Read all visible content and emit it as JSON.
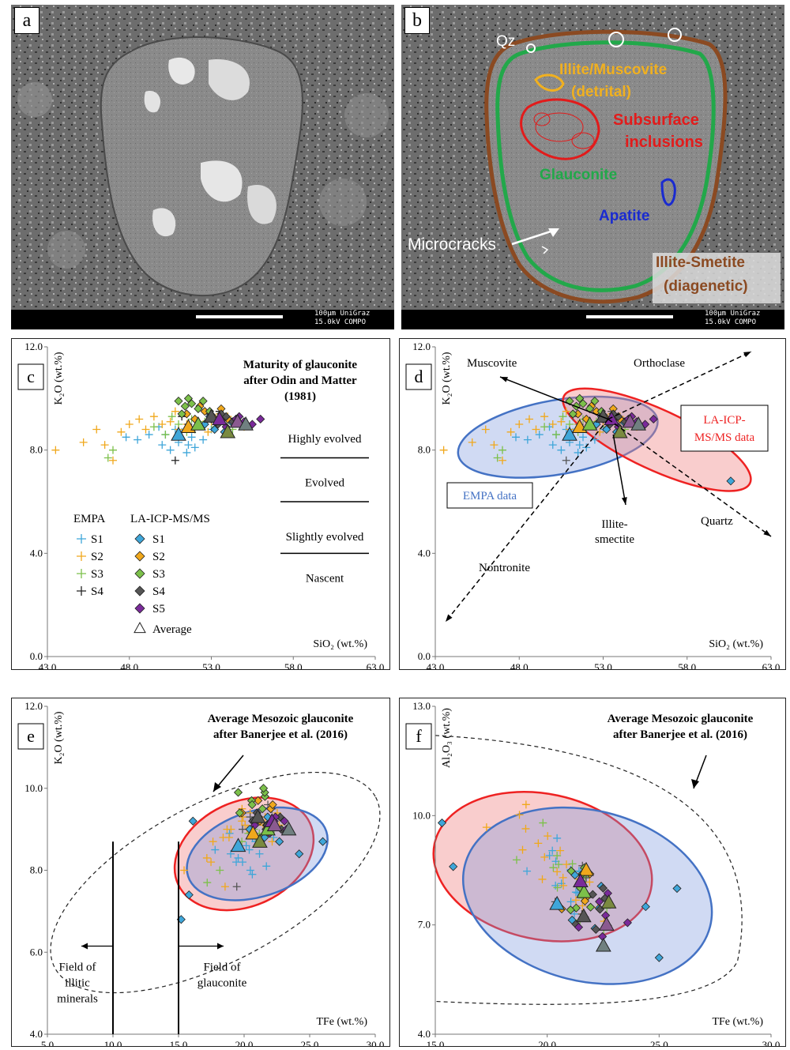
{
  "panels": {
    "a": {
      "letter": "a",
      "scale_text": [
        "100μm UniGraz",
        "15.0kV COMPO"
      ]
    },
    "b": {
      "letter": "b",
      "scale_text": [
        "100μm UniGraz",
        "15.0kV COMPO"
      ],
      "labels": {
        "qz": "Qz",
        "illite_1": "Illite/Muscovite",
        "illite_2": "(detrital)",
        "subsurface_1": "Subsurface",
        "subsurface_2": "inclusions",
        "glauconite": "Glauconite",
        "apatite": "Apatite",
        "microcracks": "Microcracks",
        "ismectite_1": "Illite-Smetite",
        "ismectite_2": "(diagenetic)"
      }
    },
    "c": {
      "letter": "c",
      "title_lines": [
        "Maturity of glauconite",
        "after Odin and Matter",
        "(1981)"
      ],
      "maturity_labels": [
        "Highly evolved",
        "Evolved",
        "Slightly evolved",
        "Nascent"
      ],
      "legend": {
        "empa_header": "EMPA",
        "la_header": "LA-ICP-MS/MS",
        "empa": [
          "S1",
          "S2",
          "S3",
          "S4"
        ],
        "la": [
          "S1",
          "S2",
          "S3",
          "S4",
          "S5"
        ],
        "average": "Average"
      }
    },
    "d": {
      "letter": "d",
      "labels": {
        "muscovite": "Muscovite",
        "orthoclase": "Orthoclase",
        "la_1": "LA-ICP-",
        "la_2": "MS/MS data",
        "empa": "EMPA data",
        "illite_1": "Illite-",
        "illite_2": "smectite",
        "quartz": "Quartz",
        "nontronite": "Nontronite"
      }
    },
    "e": {
      "letter": "e",
      "title_lines": [
        "Average Mesozoic glauconite",
        "after Banerjee et al. (2016)"
      ],
      "illitic": [
        "Field of",
        "illitic",
        "minerals"
      ],
      "glauconite_field": [
        "Field of",
        "glauconite"
      ]
    },
    "f": {
      "letter": "f",
      "title_lines": [
        "Average Mesozoic glauconite",
        "after Banerjee et al. (2016)"
      ]
    }
  },
  "colors": {
    "S1": "#3fa6d9",
    "S2": "#f0a81c",
    "S3": "#7cc04a",
    "S4": "#555555",
    "S5": "#7a2a9a",
    "empa_ellipse": "#4472c4",
    "la_ellipse": "#ee2222",
    "qz": "#ffffff",
    "illite": "#f0b020",
    "subsurface": "#e21b1b",
    "glauconite": "#22a84a",
    "apatite": "#1a2bd0",
    "ismectite_outline": "#8b4a22",
    "ismectite_text": "#8b4a22"
  },
  "chart_data": [
    {
      "id": "c",
      "type": "scatter",
      "xlabel": "SiO₂ (wt.%)",
      "ylabel": "K₂O (wt.%)",
      "xlim": [
        43,
        63
      ],
      "ylim": [
        0,
        12
      ],
      "xticks": [
        "43.0",
        "48.0",
        "53.0",
        "58.0",
        "63.0"
      ],
      "yticks": [
        "0.0",
        "4.0",
        "8.0",
        "12.0"
      ],
      "grid": false,
      "legend_placement": "bottom-left",
      "series": [
        {
          "name": "EMPA S1",
          "marker": "plus",
          "points": [
            [
              47.8,
              8.5
            ],
            [
              48.5,
              8.4
            ],
            [
              49.2,
              8.6
            ],
            [
              50.0,
              8.2
            ],
            [
              50.5,
              8.0
            ],
            [
              51.0,
              8.3
            ],
            [
              51.5,
              7.9
            ],
            [
              52.0,
              8.1
            ],
            [
              50.2,
              8.6
            ],
            [
              51.2,
              8.7
            ],
            [
              49.8,
              8.9
            ],
            [
              52.5,
              8.4
            ],
            [
              53.0,
              8.8
            ],
            [
              51.8,
              8.5
            ],
            [
              50.8,
              8.8
            ],
            [
              51.6,
              8.2
            ]
          ]
        },
        {
          "name": "EMPA S2",
          "marker": "plus",
          "points": [
            [
              43.5,
              8.0
            ],
            [
              45.2,
              8.3
            ],
            [
              46.0,
              8.8
            ],
            [
              46.5,
              8.2
            ],
            [
              47.0,
              7.6
            ],
            [
              47.5,
              8.7
            ],
            [
              48.0,
              9.0
            ],
            [
              48.6,
              9.2
            ],
            [
              49.0,
              8.8
            ],
            [
              49.5,
              9.3
            ],
            [
              50.0,
              9.0
            ],
            [
              50.5,
              9.1
            ],
            [
              51.0,
              8.8
            ],
            [
              51.5,
              9.0
            ],
            [
              52.0,
              9.2
            ],
            [
              52.5,
              9.0
            ],
            [
              53.0,
              9.1
            ],
            [
              53.5,
              9.4
            ],
            [
              54.0,
              9.3
            ],
            [
              54.5,
              9.1
            ],
            [
              55.0,
              8.9
            ],
            [
              51.2,
              9.4
            ],
            [
              52.8,
              8.7
            ],
            [
              50.8,
              9.5
            ]
          ]
        },
        {
          "name": "EMPA S3",
          "marker": "plus",
          "points": [
            [
              46.7,
              7.7
            ],
            [
              47.0,
              8.0
            ],
            [
              49.5,
              8.9
            ],
            [
              50.2,
              8.6
            ],
            [
              51.0,
              9.0
            ],
            [
              51.5,
              8.7
            ],
            [
              52.0,
              8.8
            ],
            [
              52.6,
              9.1
            ],
            [
              53.2,
              8.9
            ],
            [
              53.8,
              9.0
            ],
            [
              54.3,
              8.8
            ],
            [
              51.8,
              9.2
            ],
            [
              50.6,
              9.3
            ]
          ]
        },
        {
          "name": "EMPA S4",
          "marker": "plus",
          "points": [
            [
              50.8,
              7.6
            ],
            [
              51.2,
              9.3
            ],
            [
              52.2,
              9.6
            ],
            [
              52.8,
              9.4
            ],
            [
              53.5,
              9.5
            ],
            [
              51.6,
              9.0
            ]
          ]
        },
        {
          "name": "LA S1",
          "marker": "diamond",
          "points": [
            [
              52.6,
              9.0
            ],
            [
              53.2,
              8.8
            ],
            [
              53.8,
              8.7
            ],
            [
              54.2,
              9.1
            ],
            [
              52.9,
              9.3
            ]
          ]
        },
        {
          "name": "LA S2",
          "marker": "diamond",
          "points": [
            [
              51.5,
              9.4
            ],
            [
              52.0,
              9.2
            ],
            [
              52.6,
              9.5
            ],
            [
              53.1,
              9.3
            ],
            [
              53.6,
              9.6
            ],
            [
              54.0,
              9.2
            ],
            [
              52.3,
              9.7
            ]
          ]
        },
        {
          "name": "LA S3",
          "marker": "diamond",
          "points": [
            [
              51.0,
              9.9
            ],
            [
              51.4,
              9.7
            ],
            [
              51.8,
              9.8
            ],
            [
              52.2,
              9.6
            ],
            [
              52.5,
              9.9
            ],
            [
              51.2,
              9.4
            ],
            [
              52.9,
              9.5
            ],
            [
              51.6,
              10.0
            ]
          ]
        },
        {
          "name": "LA S4",
          "marker": "diamond",
          "points": [
            [
              53.0,
              9.2
            ],
            [
              53.4,
              9.0
            ],
            [
              53.9,
              9.3
            ],
            [
              54.3,
              9.1
            ],
            [
              54.8,
              9.0
            ],
            [
              53.6,
              9.4
            ]
          ]
        },
        {
          "name": "LA S5",
          "marker": "diamond",
          "points": [
            [
              53.3,
              9.1
            ],
            [
              53.9,
              8.9
            ],
            [
              54.5,
              9.2
            ],
            [
              55.0,
              9.1
            ],
            [
              55.5,
              9.0
            ],
            [
              56.0,
              9.2
            ],
            [
              54.7,
              9.3
            ]
          ]
        },
        {
          "name": "Average",
          "marker": "triangle",
          "points": [
            [
              51.0,
              8.6
            ],
            [
              51.6,
              8.9
            ],
            [
              52.2,
              9.0
            ],
            [
              53.0,
              9.3
            ],
            [
              53.5,
              9.2
            ],
            [
              54.0,
              8.7
            ],
            [
              54.6,
              9.1
            ],
            [
              55.1,
              9.0
            ]
          ]
        }
      ],
      "maturity_lines_y": [
        7.7,
        6.0,
        4.0
      ]
    },
    {
      "id": "d",
      "type": "scatter",
      "xlabel": "SiO₂ (wt.%)",
      "ylabel": "K₂O (wt.%)",
      "xlim": [
        43,
        63
      ],
      "ylim": [
        0,
        12
      ],
      "xticks": [
        "43.0",
        "48.0",
        "53.0",
        "58.0",
        "63.0"
      ],
      "yticks": [
        "0.0",
        "4.0",
        "8.0",
        "12.0"
      ],
      "grid": false,
      "outlier_la": [
        60.6,
        6.8
      ]
    },
    {
      "id": "e",
      "type": "scatter",
      "xlabel": "TFe (wt.%)",
      "ylabel": "K₂O (wt.%)",
      "xlim": [
        5,
        30
      ],
      "ylim": [
        4,
        12
      ],
      "xticks": [
        "5.0",
        "10.0",
        "15.0",
        "20.0",
        "25.0",
        "30.0"
      ],
      "yticks": [
        "4.0",
        "6.0",
        "8.0",
        "10.0",
        "12.0"
      ],
      "grid": false,
      "vlines_x": [
        10,
        15
      ],
      "extra_points": [
        [
          15.2,
          6.8
        ],
        [
          15.8,
          7.4
        ],
        [
          24.2,
          8.4
        ],
        [
          26.0,
          8.7
        ],
        [
          16.1,
          9.2
        ]
      ]
    },
    {
      "id": "f",
      "type": "scatter",
      "xlabel": "TFe (wt.%)",
      "ylabel": "Al₂O₃ (wt.%)",
      "xlim": [
        15,
        30
      ],
      "ylim": [
        4,
        13
      ],
      "xticks": [
        "15.0",
        "20.0",
        "25.0",
        "30.0"
      ],
      "yticks": [
        "4.0",
        "7.0",
        "10.0",
        "13.0"
      ],
      "grid": false,
      "extra_points": [
        [
          15.3,
          9.8
        ],
        [
          15.8,
          8.6
        ],
        [
          25.8,
          8.0
        ],
        [
          24.4,
          7.5
        ],
        [
          25.0,
          6.1
        ]
      ]
    }
  ]
}
